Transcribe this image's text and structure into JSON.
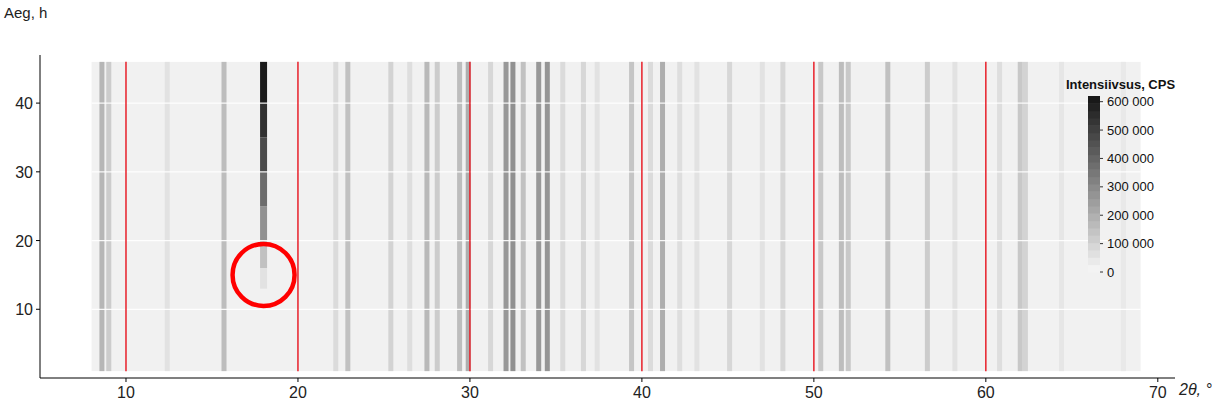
{
  "chart_data": {
    "type": "heatmap",
    "xlabel": "2θ, °",
    "ylabel": "Aeg, h",
    "xlim": [
      5,
      71
    ],
    "xticks": [
      10,
      20,
      30,
      40,
      50,
      60,
      70
    ],
    "ylim": [
      0,
      47
    ],
    "yticks": [
      10,
      20,
      30,
      40
    ],
    "grid": true,
    "data_x_range": [
      8,
      69
    ],
    "time_range": [
      1,
      46
    ],
    "background": 20000,
    "peaks": {
      "x": [
        8.6,
        9.0,
        12.4,
        15.7,
        22.2,
        22.9,
        25.4,
        26.5,
        27.5,
        28.1,
        29.4,
        29.9,
        31.2,
        32.1,
        32.5,
        33.1,
        34.0,
        34.5,
        35.4,
        36.6,
        37.4,
        39.4,
        40.5,
        41.2,
        42.2,
        43.2,
        45.1,
        47.0,
        48.2,
        50.4,
        51.6,
        52.0,
        54.3,
        56.6,
        58.2,
        60.8,
        62.0,
        62.3,
        64.4,
        68.0
      ],
      "intensities": [
        180000,
        120000,
        60000,
        160000,
        80000,
        150000,
        100000,
        70000,
        170000,
        120000,
        160000,
        200000,
        90000,
        260000,
        280000,
        150000,
        260000,
        270000,
        80000,
        90000,
        60000,
        140000,
        80000,
        200000,
        70000,
        60000,
        90000,
        60000,
        90000,
        130000,
        160000,
        130000,
        150000,
        120000,
        60000,
        70000,
        130000,
        100000,
        50000,
        40000
      ]
    },
    "growing_peak": {
      "x": 18.0,
      "time_edges": [
        13,
        16,
        20,
        25,
        30,
        35,
        40,
        46
      ],
      "intensities": [
        60000,
        150000,
        280000,
        380000,
        470000,
        540000,
        600000
      ]
    },
    "annotation": {
      "shape": "circle",
      "x": 18,
      "y": 15,
      "color": "#ff0000"
    },
    "colorbar": {
      "title": "Intensiivsus, CPS",
      "range": [
        0,
        620000
      ],
      "ticks": [
        {
          "value": 600000,
          "label": "600 000"
        },
        {
          "value": 500000,
          "label": "500 000"
        },
        {
          "value": 400000,
          "label": "400 000"
        },
        {
          "value": 300000,
          "label": "300 000"
        },
        {
          "value": 200000,
          "label": "200 000"
        },
        {
          "value": 100000,
          "label": "100 000"
        },
        0
      ]
    }
  }
}
